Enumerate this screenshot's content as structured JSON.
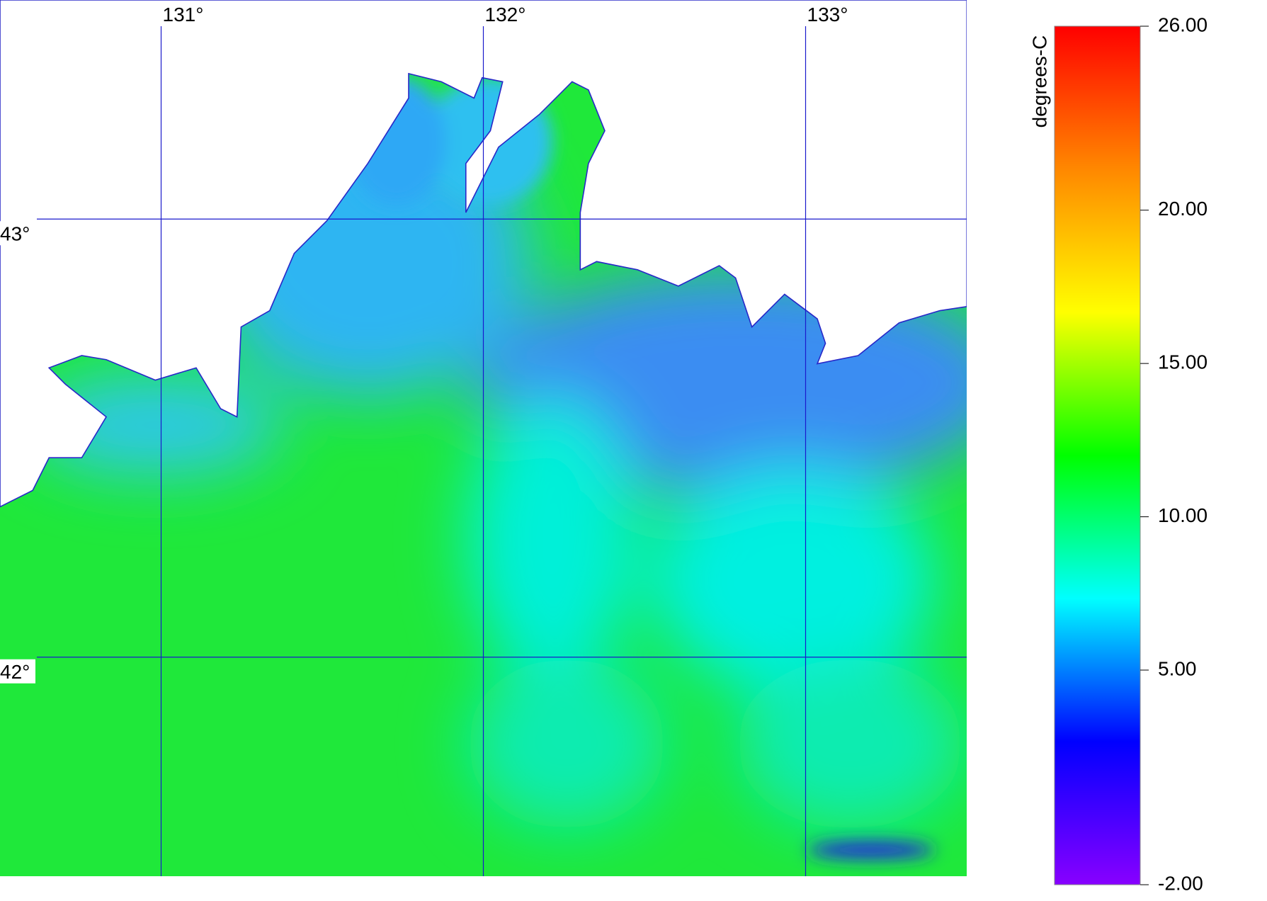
{
  "map": {
    "lon_lim": [
      130.5,
      133.5
    ],
    "lat_lim": [
      41.5,
      43.5
    ],
    "lon_ticks": [
      {
        "value": 131,
        "label": "131°"
      },
      {
        "value": 132,
        "label": "132°"
      },
      {
        "value": 133,
        "label": "133°"
      }
    ],
    "lat_ticks": [
      {
        "value": 43,
        "label": "43°"
      },
      {
        "value": 42,
        "label": "42°"
      }
    ],
    "grid_color": "#1a1acc"
  },
  "colorbar": {
    "label": "degrees-C",
    "lim": [
      -2,
      26
    ],
    "ticks": [
      {
        "value": 26,
        "label": "26.00"
      },
      {
        "value": 20,
        "label": "20.00"
      },
      {
        "value": 15,
        "label": "15.00"
      },
      {
        "value": 10,
        "label": "10.00"
      },
      {
        "value": 5,
        "label": "5.00"
      },
      {
        "value": -2,
        "label": "-2.00"
      }
    ],
    "colors": [
      "#ff0000",
      "#ff8800",
      "#ffff00",
      "#00ff00",
      "#00ffff",
      "#0000ff",
      "#8800ff"
    ]
  }
}
